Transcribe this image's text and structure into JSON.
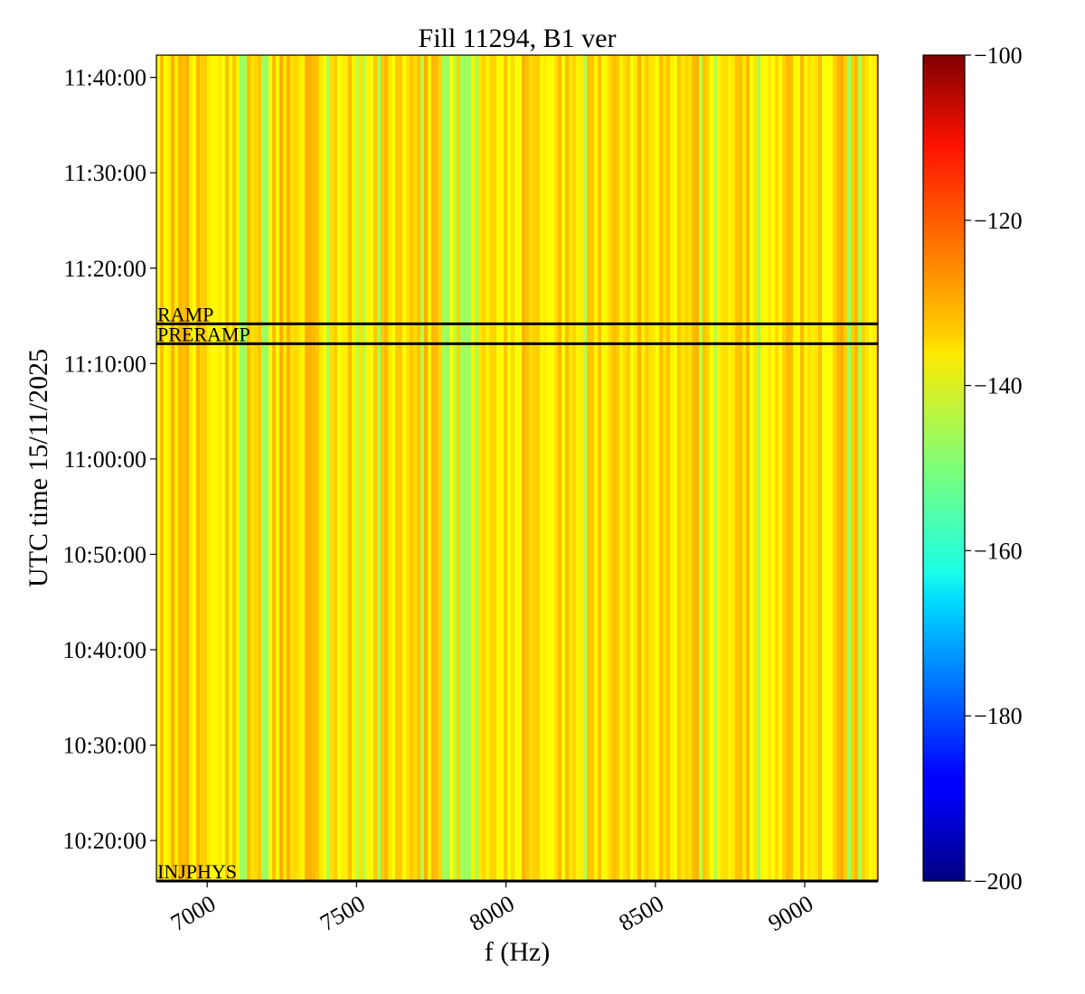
{
  "chart_data": {
    "type": "heatmap",
    "title": "Fill 11294, B1 ver",
    "xlabel": "f (Hz)",
    "ylabel": "UTC time 15/11/2025",
    "xlim": [
      6830,
      9245
    ],
    "ylim": [
      "10:15:45",
      "11:42:20"
    ],
    "x_ticks": [
      7000,
      7500,
      8000,
      8500,
      9000
    ],
    "y_ticks": [
      "10:20:00",
      "10:30:00",
      "10:40:00",
      "10:50:00",
      "11:00:00",
      "11:10:00",
      "11:20:00",
      "11:30:00",
      "11:40:00"
    ],
    "colormap": "jet",
    "colorbar": {
      "min": -200,
      "max": -100,
      "ticks": [
        -100,
        -120,
        -140,
        -160,
        -180,
        -200
      ]
    },
    "z_typical_range": [
      -148,
      -128
    ],
    "z_typical_value": -134,
    "bands_note": "vertical stripes, constant in time",
    "low_features_hz": [
      7120,
      7800,
      7850,
      7870
    ],
    "markers": [
      {
        "label": "RAMP",
        "time": "11:14:10"
      },
      {
        "label": "PRERAMP",
        "time": "11:12:05"
      },
      {
        "label": "INJPHYS",
        "time": "10:15:45"
      }
    ],
    "line_color": "#000000"
  }
}
